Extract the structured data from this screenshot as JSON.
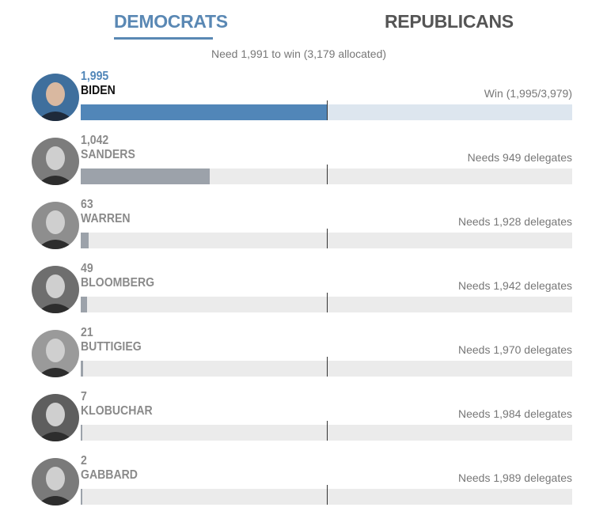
{
  "tabs": {
    "democrats": "DEMOCRATS",
    "republicans": "REPUBLICANS"
  },
  "subtitle": "Need 1,991 to win (3,179 allocated)",
  "colors": {
    "accent": "#5a88b4",
    "winner_bar": "#5186b8",
    "winner_track": "#dde6ef",
    "bar": "#9ca2aa",
    "track": "#ebebeb"
  },
  "chart_data": {
    "type": "bar",
    "orientation": "horizontal",
    "threshold": 1991,
    "xlim": [
      0,
      3979
    ],
    "candidates": [
      {
        "name": "BIDEN",
        "delegates_label": "1,995",
        "value": 1995,
        "status": "Win (1,995/3,979)",
        "winner": true
      },
      {
        "name": "SANDERS",
        "delegates_label": "1,042",
        "value": 1042,
        "status": "Needs 949 delegates",
        "winner": false
      },
      {
        "name": "WARREN",
        "delegates_label": "63",
        "value": 63,
        "status": "Needs 1,928 delegates",
        "winner": false
      },
      {
        "name": "BLOOMBERG",
        "delegates_label": "49",
        "value": 49,
        "status": "Needs 1,942 delegates",
        "winner": false
      },
      {
        "name": "BUTTIGIEG",
        "delegates_label": "21",
        "value": 21,
        "status": "Needs 1,970 delegates",
        "winner": false
      },
      {
        "name": "KLOBUCHAR",
        "delegates_label": "7",
        "value": 7,
        "status": "Needs 1,984 delegates",
        "winner": false
      },
      {
        "name": "GABBARD",
        "delegates_label": "2",
        "value": 2,
        "status": "Needs 1,989 delegates",
        "winner": false
      }
    ]
  }
}
